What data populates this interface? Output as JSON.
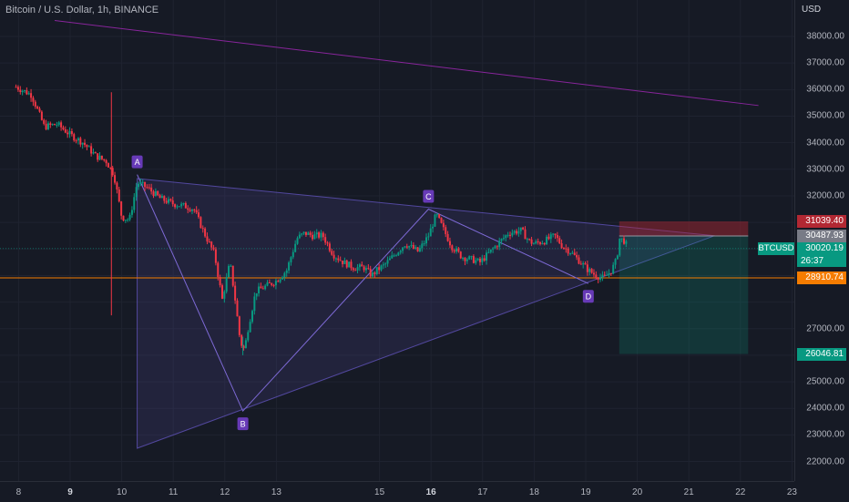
{
  "header": {
    "title": "Bitcoin / U.S. Dollar, 1h, BINANCE",
    "currency": "USD"
  },
  "chart_data": {
    "type": "candlestick",
    "symbol": "BTCUSD",
    "ylim": [
      22000,
      38500
    ],
    "y_ticks": [
      "38000.00",
      "37000.00",
      "36000.00",
      "35000.00",
      "34000.00",
      "33000.00",
      "32000.00",
      "31000.00",
      "27000.00",
      "25000.00",
      "24000.00",
      "23000.00",
      "22000.00"
    ],
    "x_ticks": [
      {
        "label": "8",
        "day": 8
      },
      {
        "label": "9",
        "day": 9,
        "bold": true
      },
      {
        "label": "10",
        "day": 10
      },
      {
        "label": "11",
        "day": 11
      },
      {
        "label": "12",
        "day": 12
      },
      {
        "label": "13",
        "day": 13
      },
      {
        "label": "15",
        "day": 15
      },
      {
        "label": "16",
        "day": 16,
        "bold": true
      },
      {
        "label": "17",
        "day": 17
      },
      {
        "label": "18",
        "day": 18
      },
      {
        "label": "19",
        "day": 19
      },
      {
        "label": "20",
        "day": 20
      },
      {
        "label": "21",
        "day": 21
      },
      {
        "label": "22",
        "day": 22
      },
      {
        "label": "23",
        "day": 23
      }
    ],
    "price_path": [
      [
        7.95,
        36100
      ],
      [
        8.25,
        35800
      ],
      [
        8.5,
        34600
      ],
      [
        8.75,
        34700
      ],
      [
        9.0,
        34300
      ],
      [
        9.25,
        34000
      ],
      [
        9.5,
        33500
      ],
      [
        9.7,
        33300
      ],
      [
        9.85,
        32800
      ],
      [
        10.0,
        31200
      ],
      [
        10.15,
        31100
      ],
      [
        10.3,
        32500
      ],
      [
        10.5,
        32300
      ],
      [
        10.75,
        31900
      ],
      [
        11.0,
        31700
      ],
      [
        11.25,
        31600
      ],
      [
        11.4,
        31500
      ],
      [
        11.6,
        30600
      ],
      [
        11.8,
        29800
      ],
      [
        11.95,
        28100
      ],
      [
        12.1,
        29500
      ],
      [
        12.2,
        28100
      ],
      [
        12.3,
        26500
      ],
      [
        12.38,
        26200
      ],
      [
        12.45,
        27000
      ],
      [
        12.6,
        28400
      ],
      [
        12.8,
        28600
      ],
      [
        13.0,
        28800
      ],
      [
        13.2,
        29200
      ],
      [
        13.4,
        30400
      ],
      [
        13.55,
        30600
      ],
      [
        13.7,
        30500
      ],
      [
        13.9,
        30500
      ],
      [
        14.1,
        29800
      ],
      [
        14.3,
        29500
      ],
      [
        14.5,
        29300
      ],
      [
        14.7,
        29300
      ],
      [
        14.85,
        29000
      ],
      [
        14.95,
        29200
      ],
      [
        15.1,
        29400
      ],
      [
        15.3,
        29800
      ],
      [
        15.5,
        30200
      ],
      [
        15.75,
        29900
      ],
      [
        15.95,
        30500
      ],
      [
        16.1,
        31300
      ],
      [
        16.25,
        30700
      ],
      [
        16.4,
        30100
      ],
      [
        16.6,
        29700
      ],
      [
        16.8,
        29600
      ],
      [
        16.95,
        29500
      ],
      [
        17.15,
        29900
      ],
      [
        17.3,
        30200
      ],
      [
        17.5,
        30600
      ],
      [
        17.75,
        30700
      ],
      [
        17.9,
        30300
      ],
      [
        18.0,
        30200
      ],
      [
        18.2,
        30300
      ],
      [
        18.4,
        30500
      ],
      [
        18.55,
        30100
      ],
      [
        18.7,
        29900
      ],
      [
        18.9,
        29500
      ],
      [
        19.05,
        29200
      ],
      [
        19.2,
        29000
      ],
      [
        19.35,
        28900
      ],
      [
        19.5,
        29200
      ],
      [
        19.6,
        29600
      ],
      [
        19.65,
        30400
      ],
      [
        19.75,
        30300
      ],
      [
        19.82,
        30020.19
      ]
    ],
    "wicks": [
      [
        9.8,
        27500,
        35900
      ],
      [
        12.35,
        26000,
        26700
      ]
    ],
    "pattern": {
      "A": {
        "day": 10.3,
        "price": 32800
      },
      "B": {
        "day": 12.35,
        "price": 23900
      },
      "C": {
        "day": 15.95,
        "price": 31500
      },
      "D": {
        "day": 19.05,
        "price": 28700
      }
    },
    "horizontal_line": 28910.74,
    "position": {
      "entry": 30487.93,
      "stop": 31039.4,
      "target": 26046.81,
      "from_day": 19.65,
      "to_day": 22.15
    },
    "price_labels": {
      "stop": "31039.40",
      "entry": "30487.93",
      "last": "30020.19",
      "countdown": "26:37",
      "hline": "28910.74",
      "target": "26046.81"
    },
    "colors": {
      "up": "#089981",
      "down": "#f23645",
      "pattern": "#7e57c2",
      "hline": "#f57c00",
      "stop": "#b22833",
      "entry": "#787b86"
    }
  }
}
